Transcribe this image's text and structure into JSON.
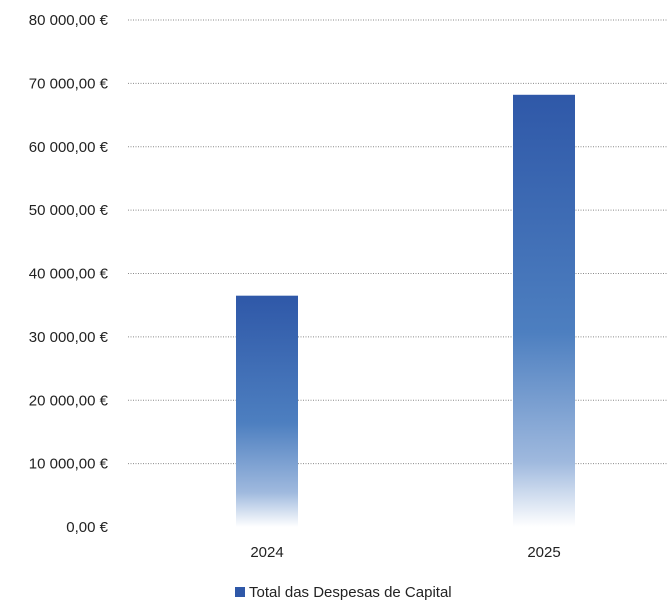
{
  "chart_data": {
    "type": "bar",
    "categories": [
      "2024",
      "2025"
    ],
    "series": [
      {
        "name": "Total das Despesas de Capital",
        "values": [
          36500,
          68200
        ]
      }
    ],
    "ylim": [
      0,
      80000
    ],
    "yticks": [
      0,
      10000,
      20000,
      30000,
      40000,
      50000,
      60000,
      70000,
      80000
    ],
    "ytick_labels": [
      "0,00 €",
      "10 000,00 €",
      "20 000,00 €",
      "30 000,00 €",
      "40 000,00 €",
      "50 000,00 €",
      "60 000,00 €",
      "70 000,00 €",
      "80 000,00 €"
    ],
    "grid": true,
    "legend_position": "bottom",
    "colors": {
      "bar_top": "#2f58a8",
      "bar_bottom": "#ffffff",
      "legend_swatch": "#2f58a8"
    }
  }
}
